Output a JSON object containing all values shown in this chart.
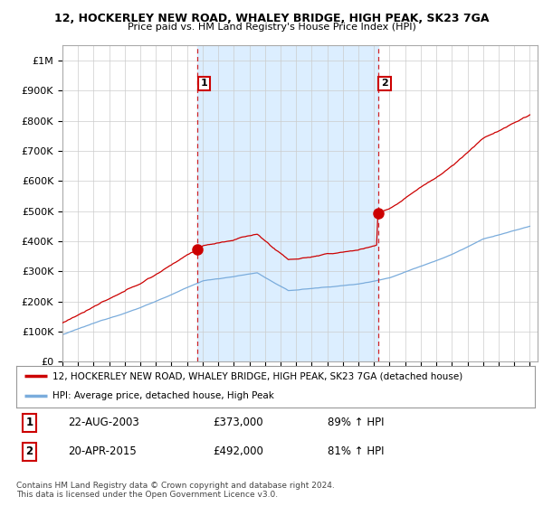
{
  "title1": "12, HOCKERLEY NEW ROAD, WHALEY BRIDGE, HIGH PEAK, SK23 7GA",
  "title2": "Price paid vs. HM Land Registry's House Price Index (HPI)",
  "legend_line1": "12, HOCKERLEY NEW ROAD, WHALEY BRIDGE, HIGH PEAK, SK23 7GA (detached house)",
  "legend_line2": "HPI: Average price, detached house, High Peak",
  "sale1_date": "22-AUG-2003",
  "sale1_price": "£373,000",
  "sale1_hpi": "89% ↑ HPI",
  "sale2_date": "20-APR-2015",
  "sale2_price": "£492,000",
  "sale2_hpi": "81% ↑ HPI",
  "footnote1": "Contains HM Land Registry data © Crown copyright and database right 2024.",
  "footnote2": "This data is licensed under the Open Government Licence v3.0.",
  "property_color": "#cc0000",
  "hpi_color": "#7aacdc",
  "sale_dot_color": "#cc0000",
  "dashed_line_color": "#cc0000",
  "shade_color": "#dceeff",
  "background_color": "#ffffff",
  "grid_color": "#cccccc",
  "ylim_max": 1050000,
  "ylim_min": 0,
  "t_sale1": 2003.63,
  "t_sale2": 2015.29,
  "sale1_price_val": 373000,
  "sale2_price_val": 492000
}
